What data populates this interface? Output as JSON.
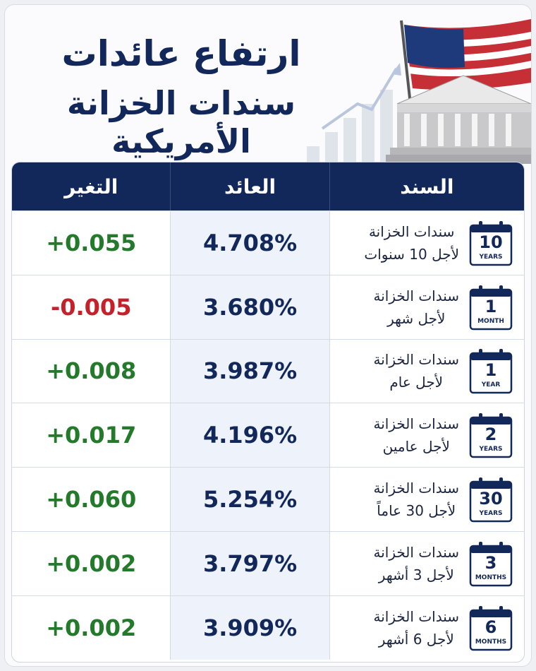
{
  "header": {
    "title_line1": "ارتفاع عائدات",
    "title_line2": "سندات الخزانة الأمريكية"
  },
  "table": {
    "columns": [
      "السند",
      "العائد",
      "التغير"
    ],
    "rows": [
      {
        "bond_line1": "سندات الخزانة",
        "bond_line2": "لأجل 10 سنوات",
        "icon_number": "10",
        "icon_unit": "YEARS",
        "yield": "4.708%",
        "change": "+0.055",
        "change_color": "#237a2b"
      },
      {
        "bond_line1": "سندات الخزانة",
        "bond_line2": "لأجل شهر",
        "icon_number": "1",
        "icon_unit": "MONTH",
        "yield": "3.680%",
        "change": "-0.005",
        "change_color": "#c4212b"
      },
      {
        "bond_line1": "سندات الخزانة",
        "bond_line2": "لأجل عام",
        "icon_number": "1",
        "icon_unit": "YEAR",
        "yield": "3.987%",
        "change": "+0.008",
        "change_color": "#237a2b"
      },
      {
        "bond_line1": "سندات الخزانة",
        "bond_line2": "لأجل عامين",
        "icon_number": "2",
        "icon_unit": "YEARS",
        "yield": "4.196%",
        "change": "+0.017",
        "change_color": "#237a2b"
      },
      {
        "bond_line1": "سندات الخزانة",
        "bond_line2": "لأجل 30 عاماً",
        "icon_number": "30",
        "icon_unit": "YEARS",
        "yield": "5.254%",
        "change": "+0.060",
        "change_color": "#237a2b"
      },
      {
        "bond_line1": "سندات الخزانة",
        "bond_line2": "لأجل 3 أشهر",
        "icon_number": "3",
        "icon_unit": "MONTHS",
        "yield": "3.797%",
        "change": "+0.002",
        "change_color": "#237a2b"
      },
      {
        "bond_line1": "سندات الخزانة",
        "bond_line2": "لأجل 6 أشهر",
        "icon_number": "6",
        "icon_unit": "MONTHS",
        "yield": "3.909%",
        "change": "+0.002",
        "change_color": "#237a2b"
      }
    ]
  }
}
